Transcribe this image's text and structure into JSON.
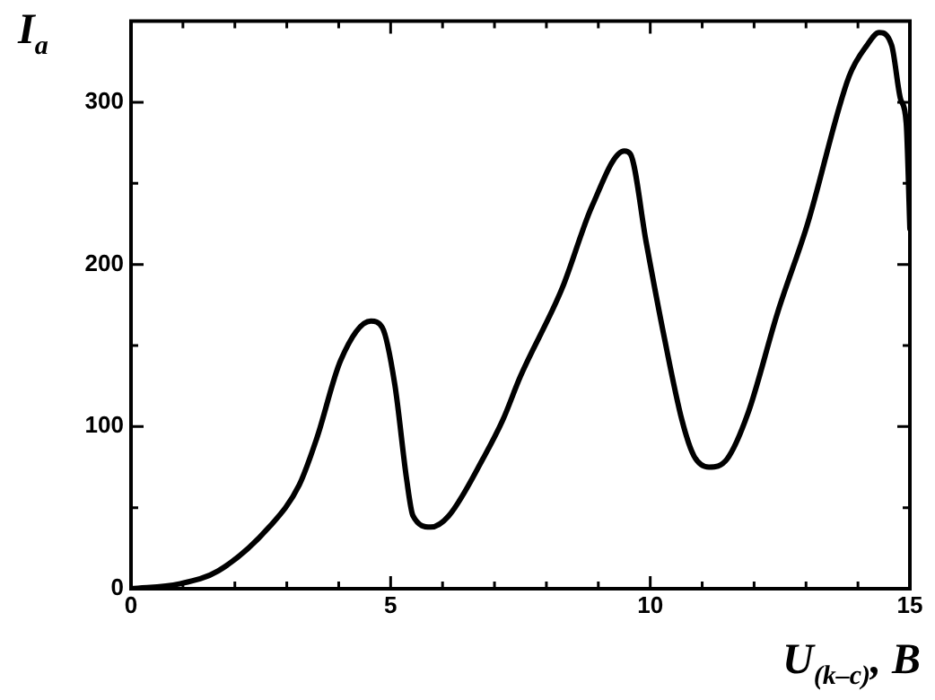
{
  "chart_data": {
    "type": "line",
    "xlabel": "U$_{(k–c)}$, B",
    "ylabel": "I$_{a}$",
    "x": [
      0,
      0.93,
      1.68,
      2.66,
      3.24,
      3.58,
      4.04,
      4.62,
      4.84,
      5.08,
      5.31,
      5.43,
      5.77,
      6.12,
      6.81,
      7.16,
      7.5,
      8.3,
      8.88,
      9.5,
      9.62,
      9.92,
      10.27,
      10.61,
      10.84,
      11.13,
      11.48,
      11.88,
      12.45,
      13.03,
      13.83,
      14.17,
      14.41,
      14.65,
      14.82,
      14.93,
      15
    ],
    "series": [
      {
        "color": "#000000",
        "values": [
          0,
          3,
          11,
          38,
          64,
          93,
          141,
          165,
          161,
          126,
          67,
          45,
          38,
          45,
          82,
          104,
          131,
          185,
          236,
          270,
          268,
          214,
          155,
          104,
          82,
          75,
          80,
          108,
          170,
          225,
          316,
          335,
          343,
          335,
          302,
          287,
          222
        ]
      }
    ],
    "xlim": [
      0,
      15
    ],
    "ylim": [
      0,
      350
    ],
    "xticks": [
      0,
      {
        "value": 1,
        "label": null
      },
      {
        "value": 2,
        "label": null
      },
      {
        "value": 3,
        "label": null
      },
      {
        "value": 4,
        "label": null
      },
      5,
      {
        "value": 6,
        "label": null
      },
      {
        "value": 7,
        "label": null
      },
      {
        "value": 8,
        "label": null
      },
      {
        "value": 9,
        "label": null
      },
      10,
      {
        "value": 11,
        "label": null
      },
      {
        "value": 12,
        "label": null
      },
      {
        "value": 13,
        "label": null
      },
      {
        "value": 14,
        "label": null
      },
      15
    ],
    "yticks": [
      0,
      {
        "value": 50,
        "label": null
      },
      100,
      {
        "value": 150,
        "label": null
      },
      200,
      {
        "value": 250,
        "label": null
      },
      300
    ],
    "grid": false,
    "legend": false,
    "marker": "none",
    "line_style": "solid"
  }
}
